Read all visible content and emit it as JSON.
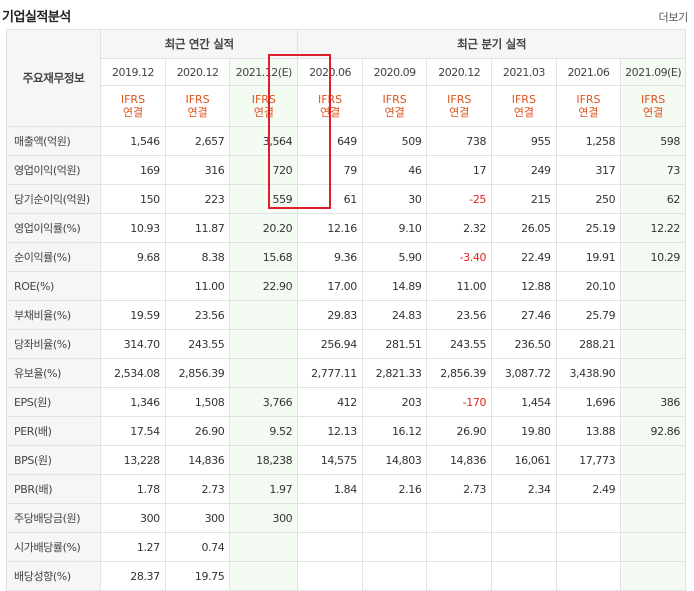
{
  "title": "기업실적분석",
  "more_label": "더보기",
  "header": {
    "row_label": "주요재무정보",
    "annual_group": "최근 연간 실적",
    "quarter_group": "최근 분기 실적",
    "periods": [
      "2019.12",
      "2020.12",
      "2021.12(E)",
      "2020.06",
      "2020.09",
      "2020.12",
      "2021.03",
      "2021.06",
      "2021.09(E)"
    ],
    "basis": [
      "IFRS 연결",
      "IFRS 연결",
      "IFRS 연결",
      "IFRS 연결",
      "IFRS 연결",
      "IFRS 연결",
      "IFRS 연결",
      "IFRS 연결",
      "IFRS 연결"
    ]
  },
  "rows": [
    {
      "label": "매출액(억원)",
      "values": [
        "1,546",
        "2,657",
        "3,564",
        "649",
        "509",
        "738",
        "955",
        "1,258",
        "598"
      ]
    },
    {
      "label": "영업이익(억원)",
      "values": [
        "169",
        "316",
        "720",
        "79",
        "46",
        "17",
        "249",
        "317",
        "73"
      ]
    },
    {
      "label": "당기순이익(억원)",
      "values": [
        "150",
        "223",
        "559",
        "61",
        "30",
        "-25",
        "215",
        "250",
        "62"
      ]
    },
    {
      "label": "영업이익률(%)",
      "values": [
        "10.93",
        "11.87",
        "20.20",
        "12.16",
        "9.10",
        "2.32",
        "26.05",
        "25.19",
        "12.22"
      ]
    },
    {
      "label": "순이익률(%)",
      "values": [
        "9.68",
        "8.38",
        "15.68",
        "9.36",
        "5.90",
        "-3.40",
        "22.49",
        "19.91",
        "10.29"
      ]
    },
    {
      "label": "ROE(%)",
      "values": [
        "",
        "11.00",
        "22.90",
        "17.00",
        "14.89",
        "11.00",
        "12.88",
        "20.10",
        ""
      ]
    },
    {
      "label": "부채비율(%)",
      "values": [
        "19.59",
        "23.56",
        "",
        "29.83",
        "24.83",
        "23.56",
        "27.46",
        "25.79",
        ""
      ]
    },
    {
      "label": "당좌비율(%)",
      "values": [
        "314.70",
        "243.55",
        "",
        "256.94",
        "281.51",
        "243.55",
        "236.50",
        "288.21",
        ""
      ]
    },
    {
      "label": "유보율(%)",
      "values": [
        "2,534.08",
        "2,856.39",
        "",
        "2,777.11",
        "2,821.33",
        "2,856.39",
        "3,087.72",
        "3,438.90",
        ""
      ]
    },
    {
      "label": "EPS(원)",
      "values": [
        "1,346",
        "1,508",
        "3,766",
        "412",
        "203",
        "-170",
        "1,454",
        "1,696",
        "386"
      ]
    },
    {
      "label": "PER(배)",
      "values": [
        "17.54",
        "26.90",
        "9.52",
        "12.13",
        "16.12",
        "26.90",
        "19.80",
        "13.88",
        "92.86"
      ]
    },
    {
      "label": "BPS(원)",
      "values": [
        "13,228",
        "14,836",
        "18,238",
        "14,575",
        "14,803",
        "14,836",
        "16,061",
        "17,773",
        ""
      ]
    },
    {
      "label": "PBR(배)",
      "values": [
        "1.78",
        "2.73",
        "1.97",
        "1.84",
        "2.16",
        "2.73",
        "2.34",
        "2.49",
        ""
      ]
    },
    {
      "label": "주당배당금(원)",
      "values": [
        "300",
        "300",
        "300",
        "",
        "",
        "",
        "",
        "",
        ""
      ]
    },
    {
      "label": "시가배당률(%)",
      "values": [
        "1.27",
        "0.74",
        "",
        "",
        "",
        "",
        "",
        "",
        ""
      ]
    },
    {
      "label": "배당성향(%)",
      "values": [
        "28.37",
        "19.75",
        "",
        "",
        "",
        "",
        "",
        "",
        ""
      ]
    }
  ],
  "colors": {
    "negative": "#e3261b",
    "basis_text": "#e0521e",
    "highlight_border": "#dd1f2a",
    "estimate_bg": "#f3fbf3",
    "header_bg": "#f6f6f6"
  }
}
